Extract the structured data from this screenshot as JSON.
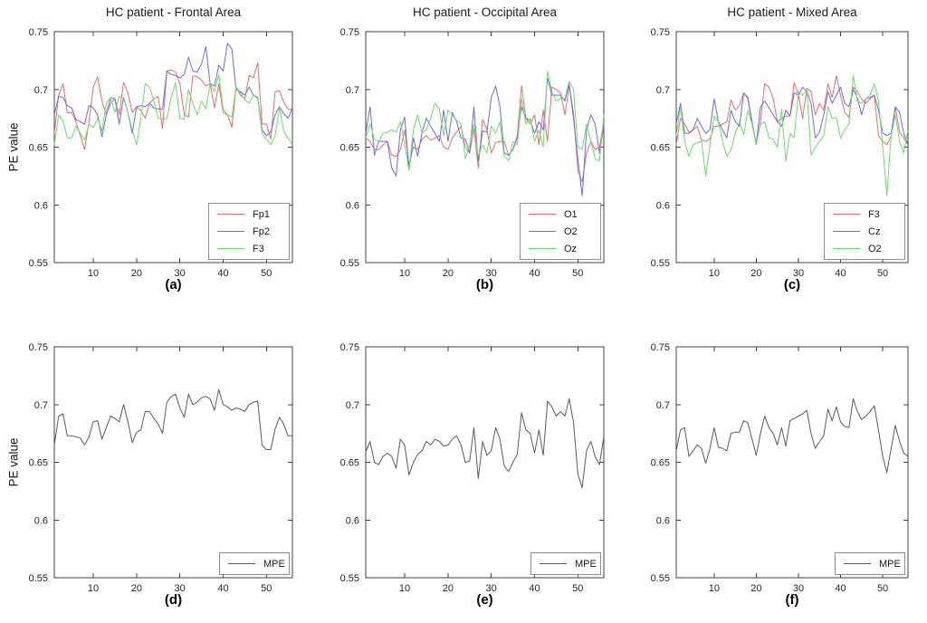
{
  "figure": {
    "background": "#ffffff",
    "axis_color": "#404040",
    "tick_label_color": "#262626",
    "legend_border_color": "#8f8f8f"
  },
  "chart_data": [
    {
      "type": "line",
      "title": "HC patient - Frontal Area",
      "caption": "(a)",
      "ylabel": "PE value",
      "xlabel": "",
      "xlim": [
        1,
        56
      ],
      "ylim": [
        0.55,
        0.75
      ],
      "xticks": [
        "10",
        "20",
        "30",
        "40",
        "50"
      ],
      "yticks": [
        "0.55",
        "0.6",
        "0.65",
        "0.7",
        "0.75"
      ],
      "grid": false,
      "legend_position": "bottom-right",
      "series": [
        {
          "name": "Fp1",
          "color": "#f06a6a",
          "values": [
            0.662,
            0.695,
            0.705,
            0.68,
            0.68,
            0.672,
            0.66,
            0.648,
            0.672,
            0.702,
            0.711,
            0.69,
            0.678,
            0.688,
            0.692,
            0.678,
            0.706,
            0.697,
            0.68,
            0.685,
            0.682,
            0.675,
            0.688,
            0.692,
            0.694,
            0.666,
            0.716,
            0.717,
            0.715,
            0.705,
            0.678,
            0.676,
            0.712,
            0.711,
            0.708,
            0.703,
            0.705,
            0.684,
            0.705,
            0.68,
            0.678,
            0.667,
            0.702,
            0.695,
            0.692,
            0.712,
            0.71,
            0.723,
            0.67,
            0.67,
            0.657,
            0.698,
            0.699,
            0.689,
            0.683,
            0.683
          ]
        },
        {
          "name": "Fp2",
          "color": "#6a6af0",
          "values": [
            0.678,
            0.694,
            0.693,
            0.686,
            0.684,
            0.674,
            0.672,
            0.67,
            0.686,
            0.684,
            0.678,
            0.659,
            0.678,
            0.693,
            0.692,
            0.67,
            0.693,
            0.68,
            0.662,
            0.685,
            0.686,
            0.685,
            0.688,
            0.684,
            0.683,
            0.683,
            0.716,
            0.713,
            0.712,
            0.71,
            0.713,
            0.728,
            0.716,
            0.715,
            0.722,
            0.737,
            0.705,
            0.703,
            0.721,
            0.716,
            0.74,
            0.735,
            0.7,
            0.698,
            0.695,
            0.702,
            0.695,
            0.693,
            0.665,
            0.66,
            0.663,
            0.678,
            0.685,
            0.679,
            0.675,
            0.684
          ]
        },
        {
          "name": "F3",
          "color": "#6ade6a",
          "values": [
            0.652,
            0.678,
            0.673,
            0.658,
            0.658,
            0.668,
            0.662,
            0.656,
            0.67,
            0.667,
            0.675,
            0.664,
            0.688,
            0.693,
            0.68,
            0.694,
            0.692,
            0.68,
            0.665,
            0.652,
            0.675,
            0.705,
            0.702,
            0.69,
            0.675,
            0.674,
            0.675,
            0.693,
            0.706,
            0.675,
            0.674,
            0.7,
            0.688,
            0.678,
            0.69,
            0.683,
            0.705,
            0.698,
            0.713,
            0.683,
            0.678,
            0.676,
            0.702,
            0.697,
            0.691,
            0.688,
            0.695,
            0.692,
            0.662,
            0.657,
            0.652,
            0.66,
            0.684,
            0.664,
            0.658,
            0.652
          ]
        }
      ]
    },
    {
      "type": "line",
      "title": "HC patient - Occipital Area",
      "caption": "(b)",
      "ylabel": "",
      "xlabel": "",
      "xlim": [
        1,
        56
      ],
      "ylim": [
        0.55,
        0.75
      ],
      "xticks": [
        "10",
        "20",
        "30",
        "40",
        "50"
      ],
      "yticks": [
        "0.55",
        "0.6",
        "0.65",
        "0.7",
        "0.75"
      ],
      "grid": false,
      "legend_position": "bottom-right",
      "series": [
        {
          "name": "O1",
          "color": "#f06a6a",
          "values": [
            0.658,
            0.655,
            0.648,
            0.648,
            0.652,
            0.655,
            0.643,
            0.642,
            0.648,
            0.665,
            0.635,
            0.65,
            0.648,
            0.657,
            0.66,
            0.656,
            0.658,
            0.66,
            0.65,
            0.648,
            0.658,
            0.663,
            0.668,
            0.65,
            0.645,
            0.666,
            0.632,
            0.674,
            0.665,
            0.645,
            0.654,
            0.655,
            0.655,
            0.643,
            0.648,
            0.66,
            0.703,
            0.675,
            0.67,
            0.678,
            0.652,
            0.682,
            0.655,
            0.702,
            0.7,
            0.697,
            0.678,
            0.703,
            0.68,
            0.63,
            0.62,
            0.645,
            0.655,
            0.648,
            0.65,
            0.672
          ]
        },
        {
          "name": "O2",
          "color": "#6a6af0",
          "values": [
            0.662,
            0.685,
            0.643,
            0.655,
            0.655,
            0.655,
            0.632,
            0.625,
            0.665,
            0.676,
            0.63,
            0.658,
            0.642,
            0.663,
            0.675,
            0.668,
            0.662,
            0.655,
            0.682,
            0.655,
            0.68,
            0.672,
            0.658,
            0.657,
            0.645,
            0.685,
            0.638,
            0.664,
            0.663,
            0.693,
            0.703,
            0.685,
            0.645,
            0.643,
            0.648,
            0.658,
            0.685,
            0.675,
            0.673,
            0.662,
            0.672,
            0.665,
            0.71,
            0.695,
            0.695,
            0.695,
            0.69,
            0.705,
            0.675,
            0.64,
            0.608,
            0.665,
            0.678,
            0.67,
            0.645,
            0.668
          ]
        },
        {
          "name": "Oz",
          "color": "#6ade6a",
          "values": [
            0.658,
            0.67,
            0.657,
            0.655,
            0.662,
            0.663,
            0.665,
            0.663,
            0.672,
            0.652,
            0.63,
            0.665,
            0.678,
            0.662,
            0.665,
            0.675,
            0.688,
            0.683,
            0.66,
            0.682,
            0.678,
            0.673,
            0.67,
            0.64,
            0.652,
            0.67,
            0.642,
            0.652,
            0.645,
            0.668,
            0.662,
            0.672,
            0.642,
            0.638,
            0.655,
            0.652,
            0.692,
            0.67,
            0.675,
            0.655,
            0.665,
            0.65,
            0.716,
            0.698,
            0.69,
            0.692,
            0.692,
            0.707,
            0.7,
            0.65,
            0.648,
            0.67,
            0.655,
            0.64,
            0.638,
            0.678
          ]
        }
      ]
    },
    {
      "type": "line",
      "title": "HC patient - Mixed Area",
      "caption": "(c)",
      "ylabel": "",
      "xlabel": "",
      "xlim": [
        1,
        56
      ],
      "ylim": [
        0.55,
        0.75
      ],
      "xticks": [
        "10",
        "20",
        "30",
        "40",
        "50"
      ],
      "yticks": [
        "0.55",
        "0.6",
        "0.65",
        "0.7",
        "0.75"
      ],
      "grid": false,
      "legend_position": "bottom-right",
      "series": [
        {
          "name": "F3",
          "color": "#f06a6a",
          "values": [
            0.652,
            0.675,
            0.67,
            0.663,
            0.665,
            0.668,
            0.656,
            0.655,
            0.657,
            0.668,
            0.668,
            0.67,
            0.672,
            0.691,
            0.682,
            0.686,
            0.697,
            0.692,
            0.67,
            0.652,
            0.672,
            0.705,
            0.702,
            0.692,
            0.672,
            0.675,
            0.677,
            0.677,
            0.706,
            0.695,
            0.675,
            0.701,
            0.698,
            0.678,
            0.688,
            0.682,
            0.705,
            0.693,
            0.712,
            0.695,
            0.68,
            0.676,
            0.702,
            0.698,
            0.692,
            0.688,
            0.692,
            0.695,
            0.66,
            0.655,
            0.652,
            0.66,
            0.685,
            0.663,
            0.658,
            0.652
          ]
        },
        {
          "name": "Cz",
          "color": "#6a6af0",
          "values": [
            0.67,
            0.688,
            0.662,
            0.662,
            0.665,
            0.675,
            0.668,
            0.662,
            0.665,
            0.692,
            0.672,
            0.665,
            0.658,
            0.682,
            0.672,
            0.668,
            0.697,
            0.693,
            0.672,
            0.653,
            0.685,
            0.69,
            0.684,
            0.678,
            0.672,
            0.668,
            0.682,
            0.677,
            0.697,
            0.695,
            0.702,
            0.698,
            0.688,
            0.658,
            0.663,
            0.678,
            0.698,
            0.688,
            0.695,
            0.702,
            0.688,
            0.685,
            0.7,
            0.693,
            0.678,
            0.692,
            0.693,
            0.695,
            0.682,
            0.662,
            0.66,
            0.662,
            0.685,
            0.68,
            0.662,
            0.652
          ]
        },
        {
          "name": "O2",
          "color": "#6ade6a",
          "values": [
            0.66,
            0.685,
            0.655,
            0.642,
            0.652,
            0.654,
            0.655,
            0.625,
            0.652,
            0.677,
            0.672,
            0.655,
            0.642,
            0.648,
            0.662,
            0.672,
            0.661,
            0.682,
            0.67,
            0.653,
            0.67,
            0.672,
            0.658,
            0.657,
            0.65,
            0.683,
            0.638,
            0.662,
            0.658,
            0.698,
            0.695,
            0.7,
            0.643,
            0.65,
            0.655,
            0.66,
            0.685,
            0.675,
            0.675,
            0.658,
            0.665,
            0.67,
            0.712,
            0.69,
            0.688,
            0.692,
            0.695,
            0.705,
            0.69,
            0.65,
            0.608,
            0.66,
            0.678,
            0.655,
            0.645,
            0.665
          ]
        }
      ]
    },
    {
      "type": "line",
      "title": "",
      "caption": "(d)",
      "ylabel": "PE value",
      "xlabel": "",
      "xlim": [
        1,
        56
      ],
      "ylim": [
        0.55,
        0.75
      ],
      "xticks": [
        "10",
        "20",
        "30",
        "40",
        "50"
      ],
      "yticks": [
        "0.55",
        "0.6",
        "0.65",
        "0.7",
        "0.75"
      ],
      "grid": false,
      "legend_position": "bottom-right",
      "series": [
        {
          "name": "MPE",
          "color": "#5a5a5a",
          "values": [
            0.665,
            0.69,
            0.692,
            0.673,
            0.673,
            0.672,
            0.671,
            0.665,
            0.672,
            0.685,
            0.686,
            0.67,
            0.68,
            0.69,
            0.688,
            0.685,
            0.7,
            0.685,
            0.667,
            0.676,
            0.678,
            0.694,
            0.694,
            0.688,
            0.683,
            0.675,
            0.702,
            0.707,
            0.709,
            0.697,
            0.689,
            0.709,
            0.7,
            0.702,
            0.706,
            0.707,
            0.705,
            0.695,
            0.713,
            0.7,
            0.698,
            0.695,
            0.697,
            0.696,
            0.694,
            0.7,
            0.702,
            0.703,
            0.665,
            0.661,
            0.661,
            0.679,
            0.689,
            0.683,
            0.673,
            0.673
          ]
        }
      ]
    },
    {
      "type": "line",
      "title": "",
      "caption": "(e)",
      "ylabel": "",
      "xlabel": "",
      "xlim": [
        1,
        56
      ],
      "ylim": [
        0.55,
        0.75
      ],
      "xticks": [
        "10",
        "20",
        "30",
        "40",
        "50"
      ],
      "yticks": [
        "0.55",
        "0.6",
        "0.65",
        "0.7",
        "0.75"
      ],
      "grid": false,
      "legend_position": "bottom-right",
      "series": [
        {
          "name": "MPE",
          "color": "#5a5a5a",
          "values": [
            0.659,
            0.668,
            0.65,
            0.648,
            0.655,
            0.658,
            0.655,
            0.645,
            0.67,
            0.665,
            0.639,
            0.65,
            0.657,
            0.66,
            0.668,
            0.665,
            0.67,
            0.668,
            0.664,
            0.665,
            0.67,
            0.673,
            0.665,
            0.65,
            0.651,
            0.68,
            0.636,
            0.668,
            0.656,
            0.66,
            0.68,
            0.67,
            0.647,
            0.642,
            0.65,
            0.657,
            0.693,
            0.678,
            0.675,
            0.658,
            0.678,
            0.656,
            0.703,
            0.698,
            0.69,
            0.694,
            0.69,
            0.705,
            0.685,
            0.64,
            0.628,
            0.66,
            0.668,
            0.655,
            0.648,
            0.672
          ]
        }
      ]
    },
    {
      "type": "line",
      "title": "",
      "caption": "(f)",
      "ylabel": "",
      "xlabel": "",
      "xlim": [
        1,
        56
      ],
      "ylim": [
        0.55,
        0.75
      ],
      "xticks": [
        "10",
        "20",
        "30",
        "40",
        "50"
      ],
      "yticks": [
        "0.55",
        "0.6",
        "0.65",
        "0.7",
        "0.75"
      ],
      "grid": false,
      "legend_position": "bottom-right",
      "series": [
        {
          "name": "MPE",
          "color": "#5a5a5a",
          "values": [
            0.66,
            0.678,
            0.68,
            0.655,
            0.66,
            0.665,
            0.662,
            0.649,
            0.662,
            0.68,
            0.663,
            0.662,
            0.66,
            0.675,
            0.676,
            0.676,
            0.686,
            0.684,
            0.67,
            0.656,
            0.675,
            0.69,
            0.68,
            0.675,
            0.665,
            0.68,
            0.664,
            0.686,
            0.688,
            0.69,
            0.692,
            0.695,
            0.675,
            0.662,
            0.668,
            0.673,
            0.696,
            0.686,
            0.698,
            0.685,
            0.681,
            0.68,
            0.705,
            0.694,
            0.687,
            0.69,
            0.694,
            0.699,
            0.678,
            0.655,
            0.641,
            0.662,
            0.682,
            0.668,
            0.658,
            0.655
          ]
        }
      ]
    }
  ]
}
